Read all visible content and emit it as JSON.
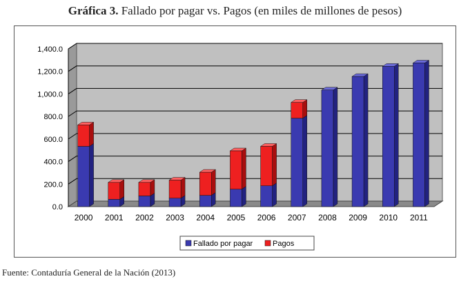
{
  "title_number": "Gráfica 3.",
  "title_text": "Fallado por pagar vs. Pagos (en miles de millones de pesos)",
  "source": "Fuente: Contaduría General de la Nación (2013)",
  "colors": {
    "fallado_front": "#3a3ab0",
    "fallado_side": "#222280",
    "fallado_top": "#6a6ad8",
    "pagos_front": "#ee2020",
    "pagos_side": "#a80e0e",
    "pagos_top": "#ff6060",
    "plot_bg": "#c0c0c0",
    "floor": "#8a8a8a"
  },
  "chart_data": {
    "type": "bar",
    "stacked": true,
    "three_d": true,
    "categories": [
      "2000",
      "2001",
      "2002",
      "2003",
      "2004",
      "2005",
      "2006",
      "2007",
      "2008",
      "2009",
      "2010",
      "2011"
    ],
    "series": [
      {
        "name": "Fallado por pagar",
        "values": [
          535,
          65,
          95,
          75,
          100,
          155,
          185,
          785,
          1035,
          1155,
          1245,
          1275
        ]
      },
      {
        "name": "Pagos",
        "values": [
          190,
          150,
          120,
          160,
          205,
          340,
          350,
          140,
          0,
          0,
          0,
          0
        ]
      }
    ],
    "ylim": [
      0,
      1400
    ],
    "yticks": [
      "0.0",
      "200.0",
      "400.0",
      "600.0",
      "800.0",
      "1,000.0",
      "1,200.0",
      "1,400.0"
    ],
    "ytick_values": [
      0,
      200,
      400,
      600,
      800,
      1000,
      1200,
      1400
    ],
    "grid": true,
    "legend": "bottom-center"
  }
}
